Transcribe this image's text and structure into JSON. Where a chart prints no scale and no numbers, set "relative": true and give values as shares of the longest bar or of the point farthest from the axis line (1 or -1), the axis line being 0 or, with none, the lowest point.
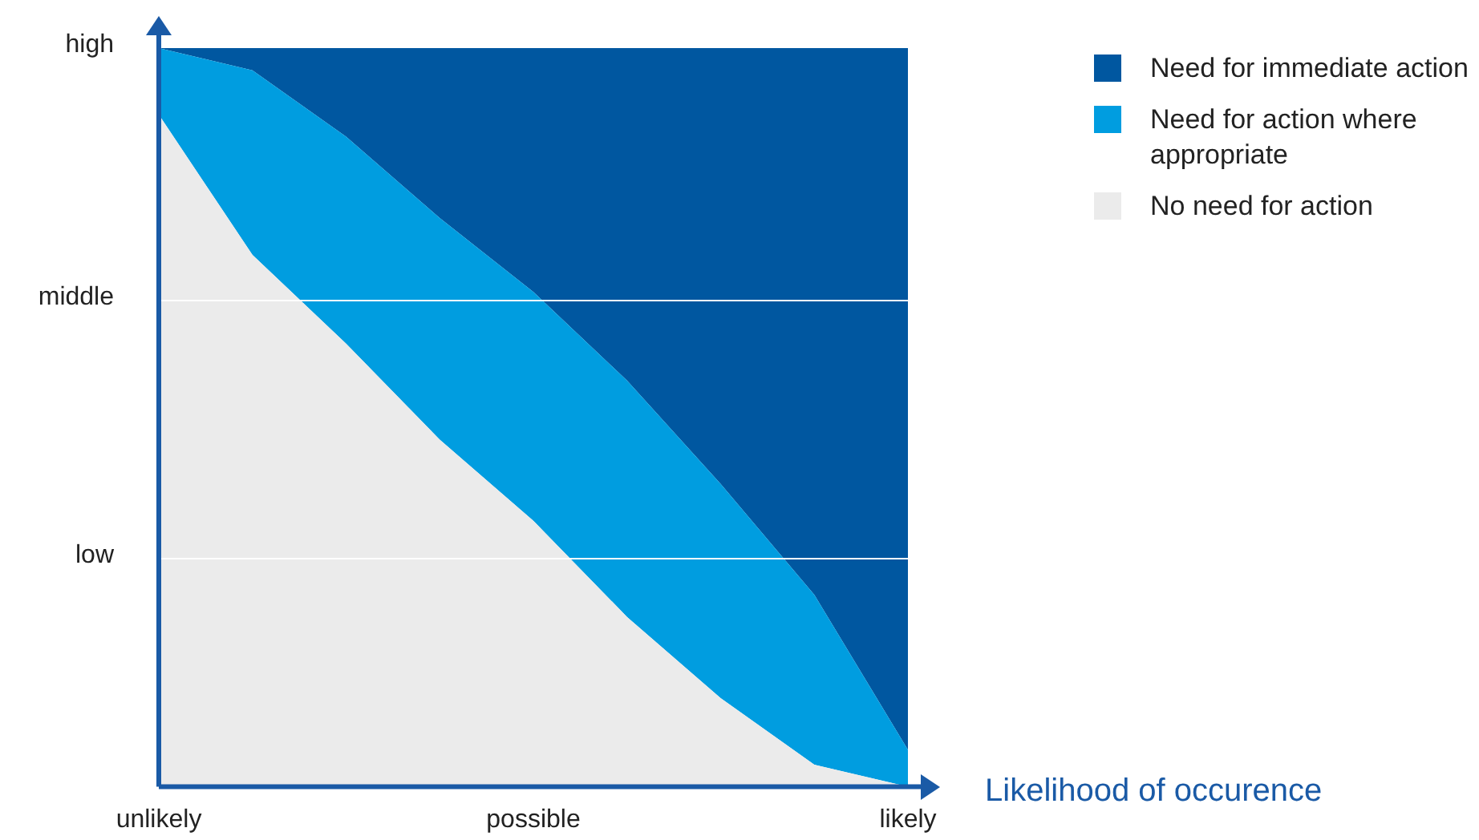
{
  "chart_data": {
    "type": "area",
    "stacked": true,
    "relative": true,
    "xlabel": "Likelihood of occurence",
    "categories": [
      "unlikely",
      null,
      null,
      null,
      "possible",
      null,
      null,
      null,
      "likely"
    ],
    "series": [
      {
        "name": "No need for action",
        "color": "#ebebeb",
        "values": [
          0.91,
          0.72,
          0.6,
          0.47,
          0.36,
          0.23,
          0.12,
          0.03,
          0
        ]
      },
      {
        "name": "Need for action where appropriate",
        "color": "#009de0",
        "values": [
          0.09,
          0.25,
          0.28,
          0.3,
          0.31,
          0.32,
          0.29,
          0.23,
          0.05
        ]
      },
      {
        "name": "Need for immediate action",
        "color": "#0057a0",
        "values": [
          0,
          0.03,
          0.12,
          0.23,
          0.33,
          0.45,
          0.59,
          0.74,
          0.95
        ]
      }
    ],
    "annotations": [
      "high"
    ],
    "ref_lines": [
      {
        "axis": "y",
        "value": 0.66,
        "label": "middle",
        "color": "#ffffff"
      },
      {
        "axis": "y",
        "value": 0.31,
        "label": "low",
        "color": "#ffffff"
      }
    ],
    "legend": "right"
  }
}
